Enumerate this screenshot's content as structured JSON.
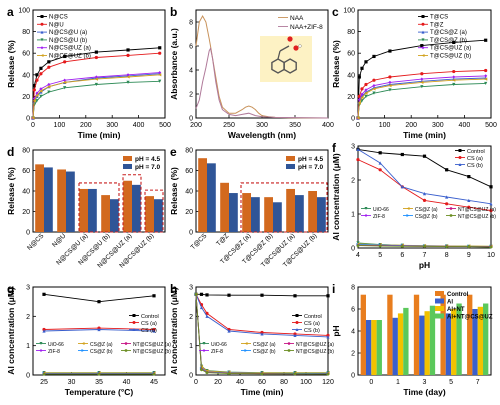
{
  "chart_data": [
    {
      "id": "a",
      "type": "line",
      "panel_label": "a",
      "xlabel": "Time (min)",
      "ylabel": "Release (%)",
      "xlim": [
        0,
        500
      ],
      "ylim": [
        0,
        100
      ],
      "xticks": [
        0,
        100,
        200,
        300,
        400,
        500
      ],
      "yticks": [
        0,
        20,
        40,
        60,
        80,
        100
      ],
      "legend": "top-left",
      "grid": false,
      "x": [
        0,
        5,
        15,
        30,
        60,
        120,
        240,
        360,
        480
      ],
      "series": [
        {
          "name": "N@CS",
          "color": "#000000",
          "marker": "square",
          "values": [
            0,
            30,
            40,
            46,
            52,
            57,
            61,
            63,
            65
          ]
        },
        {
          "name": "N@U",
          "color": "#e41a1c",
          "marker": "circle",
          "values": [
            0,
            26,
            35,
            41,
            47,
            52,
            56,
            58,
            60
          ]
        },
        {
          "name": "N@CS@U (a)",
          "color": "#3a5fcd",
          "marker": "triangle",
          "values": [
            0,
            15,
            20,
            24,
            29,
            33,
            37,
            39,
            41
          ]
        },
        {
          "name": "N@CS@U (b)",
          "color": "#2e8b57",
          "marker": "triangle-down",
          "values": [
            0,
            12,
            16,
            20,
            24,
            28,
            31,
            33,
            34
          ]
        },
        {
          "name": "N@CS@UZ (a)",
          "color": "#a020f0",
          "marker": "diamond",
          "values": [
            0,
            18,
            23,
            27,
            31,
            35,
            38,
            40,
            42
          ]
        },
        {
          "name": "N@CS@UZ (b)",
          "color": "#d2a21e",
          "marker": "triangle-left",
          "values": [
            0,
            16,
            21,
            25,
            29,
            33,
            36,
            38,
            40
          ]
        }
      ]
    },
    {
      "id": "b",
      "type": "line",
      "panel_label": "b",
      "xlabel": "Wavelength (nm)",
      "ylabel": "Absorbance (a.u.)",
      "xlim": [
        200,
        400
      ],
      "ylim": [
        0,
        9
      ],
      "xticks": [
        200,
        250,
        300,
        350,
        400
      ],
      "yticks": [
        0,
        2,
        4,
        6,
        8
      ],
      "legend": "top-right",
      "grid": false,
      "inset": "molecular structure of NAA",
      "series": [
        {
          "name": "NAA",
          "color": "#c8925a",
          "x": [
            200,
            205,
            210,
            215,
            220,
            222,
            225,
            230,
            235,
            240,
            250,
            260,
            270,
            275,
            280,
            285,
            290,
            295,
            300,
            310,
            320,
            340,
            360,
            400
          ],
          "values": [
            6.0,
            8.0,
            8.5,
            8.0,
            6.6,
            6.0,
            5.0,
            3.4,
            1.8,
            0.9,
            0.4,
            0.4,
            0.7,
            0.9,
            1.0,
            0.9,
            0.7,
            0.4,
            0.2,
            0.1,
            0.05,
            0.02,
            0.01,
            0.0
          ]
        },
        {
          "name": "NAA+ZIF-8",
          "color": "#b07a9a",
          "x": [
            200,
            205,
            210,
            215,
            220,
            222,
            225,
            230,
            235,
            240,
            250,
            260,
            270,
            280,
            290,
            300,
            320,
            400
          ],
          "values": [
            0.8,
            1.5,
            3.0,
            4.2,
            5.6,
            5.8,
            5.0,
            3.0,
            1.5,
            0.7,
            0.3,
            0.2,
            0.3,
            0.4,
            0.2,
            0.1,
            0.05,
            0.0
          ]
        }
      ]
    },
    {
      "id": "c",
      "type": "line",
      "panel_label": "c",
      "xlabel": "Time (min)",
      "ylabel": "Release (%)",
      "xlim": [
        0,
        500
      ],
      "ylim": [
        0,
        100
      ],
      "xticks": [
        0,
        100,
        200,
        300,
        400,
        500
      ],
      "yticks": [
        0,
        20,
        40,
        60,
        80,
        100
      ],
      "legend": "top-right",
      "grid": false,
      "x": [
        0,
        5,
        15,
        30,
        60,
        120,
        240,
        360,
        480
      ],
      "series": [
        {
          "name": "T@CS",
          "color": "#000000",
          "marker": "square",
          "values": [
            0,
            38,
            46,
            52,
            57,
            62,
            67,
            70,
            72
          ]
        },
        {
          "name": "T@Z",
          "color": "#e41a1c",
          "marker": "circle",
          "values": [
            0,
            20,
            27,
            31,
            35,
            38,
            41,
            43,
            44
          ]
        },
        {
          "name": "T@CS@Z (a)",
          "color": "#3a5fcd",
          "marker": "triangle",
          "values": [
            0,
            15,
            20,
            24,
            28,
            31,
            34,
            36,
            37
          ]
        },
        {
          "name": "T@CS@Z (b)",
          "color": "#2e8b57",
          "marker": "triangle-down",
          "values": [
            0,
            12,
            16,
            20,
            23,
            26,
            29,
            31,
            32
          ]
        },
        {
          "name": "T@CS@UZ (a)",
          "color": "#a020f0",
          "marker": "diamond",
          "values": [
            0,
            17,
            22,
            26,
            30,
            33,
            36,
            38,
            39
          ]
        },
        {
          "name": "T@CS@UZ (b)",
          "color": "#d2a21e",
          "marker": "triangle-left",
          "values": [
            0,
            14,
            19,
            23,
            27,
            30,
            33,
            35,
            36
          ]
        }
      ]
    },
    {
      "id": "d",
      "type": "bar",
      "panel_label": "d",
      "xlabel": "",
      "ylabel": "Release (%)",
      "ylim": [
        0,
        80
      ],
      "yticks": [
        0,
        20,
        40,
        60,
        80
      ],
      "legend": "top-right",
      "grid": false,
      "highlight_groups": [
        2,
        3,
        4,
        5
      ],
      "categories": [
        "N@CS",
        "N@U",
        "N@CS@U (a)",
        "N@CS@U (b)",
        "N@CS@UZ (a)",
        "N@CS@UZ (b)"
      ],
      "series": [
        {
          "name": "pH = 4.5",
          "color": "#d2691e",
          "values": [
            66,
            61,
            42,
            36,
            50,
            35
          ]
        },
        {
          "name": "pH = 7.0",
          "color": "#2f5597",
          "values": [
            63,
            59,
            42,
            32,
            46,
            32
          ]
        }
      ]
    },
    {
      "id": "e",
      "type": "bar",
      "panel_label": "e",
      "xlabel": "",
      "ylabel": "Release (%)",
      "ylim": [
        0,
        80
      ],
      "yticks": [
        0,
        20,
        40,
        60,
        80
      ],
      "legend": "top-right",
      "grid": false,
      "highlight_groups": [
        2,
        3,
        4,
        5
      ],
      "categories": [
        "T@CS",
        "T@Z",
        "T@CS@Z (a)",
        "T@CS@Z (b)",
        "T@CS@UZ (a)",
        "T@CS@UZ (b)"
      ],
      "series": [
        {
          "name": "pH = 4.5",
          "color": "#d2691e",
          "values": [
            72,
            48,
            38,
            34,
            42,
            40
          ]
        },
        {
          "name": "pH = 7.0",
          "color": "#2f5597",
          "values": [
            67,
            38,
            34,
            29,
            36,
            34
          ]
        }
      ]
    },
    {
      "id": "f",
      "type": "line",
      "panel_label": "f",
      "xlabel": "pH",
      "ylabel": "Al concentration (μM)",
      "xlim": [
        4,
        10
      ],
      "ylim": [
        0,
        3
      ],
      "xticks": [
        4,
        5,
        6,
        7,
        8,
        9,
        10
      ],
      "yticks": [
        0,
        1,
        2,
        3
      ],
      "legend": "top-right",
      "grid": false,
      "x": [
        4,
        5,
        6,
        7,
        8,
        9,
        10
      ],
      "series": [
        {
          "name": "Control",
          "color": "#000000",
          "marker": "square",
          "values": [
            2.9,
            2.8,
            2.75,
            2.7,
            2.3,
            2.1,
            1.8
          ]
        },
        {
          "name": "CS (a)",
          "color": "#e41a1c",
          "marker": "circle",
          "values": [
            2.6,
            2.3,
            1.8,
            1.4,
            1.3,
            1.2,
            1.1
          ]
        },
        {
          "name": "CS (b)",
          "color": "#3a5fcd",
          "marker": "triangle",
          "values": [
            2.9,
            2.5,
            1.8,
            1.6,
            1.5,
            1.4,
            1.3
          ]
        },
        {
          "name": "UiO-66",
          "color": "#2e8b57",
          "marker": "triangle-down",
          "values": [
            0.15,
            0.1,
            0.08,
            0.06,
            0.06,
            0.05,
            0.05
          ]
        },
        {
          "name": "ZIF-8",
          "color": "#a020f0",
          "marker": "diamond",
          "values": [
            0.1,
            0.08,
            0.06,
            0.05,
            0.05,
            0.04,
            0.04
          ]
        },
        {
          "name": "CS@Z (a)",
          "color": "#d2a21e",
          "marker": "triangle-left",
          "values": [
            0.12,
            0.1,
            0.08,
            0.07,
            0.06,
            0.06,
            0.05
          ]
        },
        {
          "name": "CS@Z (b)",
          "color": "#1e90ff",
          "marker": "triangle-right",
          "values": [
            0.1,
            0.09,
            0.07,
            0.06,
            0.05,
            0.05,
            0.04
          ]
        },
        {
          "name": "NT@CS@UZ (a)",
          "color": "#c71585",
          "marker": "pentagon",
          "values": [
            0.08,
            0.07,
            0.06,
            0.05,
            0.05,
            0.04,
            0.04
          ]
        },
        {
          "name": "NT@CS@UZ (b)",
          "color": "#6b8e23",
          "marker": "hexagon",
          "values": [
            0.07,
            0.06,
            0.05,
            0.05,
            0.04,
            0.04,
            0.03
          ]
        }
      ]
    },
    {
      "id": "g",
      "type": "line",
      "panel_label": "g",
      "xlabel": "Temperature (°C)",
      "ylabel": "Al concentration (μM)",
      "xlim": [
        23,
        47
      ],
      "ylim": [
        0,
        3
      ],
      "xticks": [
        25,
        30,
        35,
        40,
        45
      ],
      "yticks": [
        0,
        1,
        2,
        3
      ],
      "legend": "middle-right",
      "grid": false,
      "x": [
        25,
        35,
        45
      ],
      "series": [
        {
          "name": "Control",
          "color": "#000000",
          "marker": "square",
          "values": [
            2.75,
            2.5,
            2.7
          ]
        },
        {
          "name": "CS (a)",
          "color": "#e41a1c",
          "marker": "circle",
          "values": [
            1.55,
            1.6,
            1.55
          ]
        },
        {
          "name": "CS (b)",
          "color": "#3a5fcd",
          "marker": "triangle",
          "values": [
            1.5,
            1.55,
            1.5
          ]
        },
        {
          "name": "UiO-66",
          "color": "#2e8b57",
          "marker": "triangle-down",
          "values": [
            0.08,
            0.08,
            0.08
          ]
        },
        {
          "name": "ZIF-8",
          "color": "#a020f0",
          "marker": "diamond",
          "values": [
            0.06,
            0.06,
            0.06
          ]
        },
        {
          "name": "CS@Z (a)",
          "color": "#d2a21e",
          "marker": "triangle-left",
          "values": [
            0.07,
            0.07,
            0.07
          ]
        },
        {
          "name": "CS@Z (b)",
          "color": "#1e90ff",
          "marker": "triangle-right",
          "values": [
            0.05,
            0.05,
            0.05
          ]
        },
        {
          "name": "NT@CS@UZ (a)",
          "color": "#c71585",
          "marker": "pentagon",
          "values": [
            0.04,
            0.04,
            0.04
          ]
        },
        {
          "name": "NT@CS@UZ (b)",
          "color": "#6b8e23",
          "marker": "hexagon",
          "values": [
            0.03,
            0.03,
            0.03
          ]
        }
      ]
    },
    {
      "id": "h",
      "type": "line",
      "panel_label": "h",
      "xlabel": "Time (min)",
      "ylabel": "Al concentration (μM)",
      "xlim": [
        0,
        120
      ],
      "ylim": [
        0,
        3
      ],
      "xticks": [
        0,
        20,
        40,
        60,
        80,
        100,
        120
      ],
      "yticks": [
        0,
        1,
        2,
        3
      ],
      "legend": "middle-right",
      "grid": false,
      "x": [
        0,
        5,
        10,
        30,
        60,
        90,
        120
      ],
      "series": [
        {
          "name": "Control",
          "color": "#000000",
          "marker": "square",
          "values": [
            2.75,
            2.75,
            2.73,
            2.72,
            2.72,
            2.7,
            2.7
          ]
        },
        {
          "name": "CS (a)",
          "color": "#e41a1c",
          "marker": "circle",
          "values": [
            2.75,
            2.4,
            2.1,
            1.55,
            1.45,
            1.4,
            1.35
          ]
        },
        {
          "name": "CS (b)",
          "color": "#3a5fcd",
          "marker": "triangle",
          "values": [
            2.75,
            2.3,
            2.0,
            1.5,
            1.4,
            1.35,
            1.3
          ]
        },
        {
          "name": "UiO-66",
          "color": "#2e8b57",
          "marker": "triangle-down",
          "values": [
            2.75,
            0.3,
            0.15,
            0.1,
            0.08,
            0.08,
            0.08
          ]
        },
        {
          "name": "ZIF-8",
          "color": "#a020f0",
          "marker": "diamond",
          "values": [
            2.75,
            0.25,
            0.12,
            0.08,
            0.06,
            0.06,
            0.06
          ]
        },
        {
          "name": "CS@Z (a)",
          "color": "#d2a21e",
          "marker": "triangle-left",
          "values": [
            2.75,
            0.28,
            0.14,
            0.09,
            0.07,
            0.07,
            0.07
          ]
        },
        {
          "name": "CS@Z (b)",
          "color": "#1e90ff",
          "marker": "triangle-right",
          "values": [
            2.75,
            0.22,
            0.1,
            0.07,
            0.05,
            0.05,
            0.05
          ]
        },
        {
          "name": "NT@CS@UZ (a)",
          "color": "#c71585",
          "marker": "pentagon",
          "values": [
            2.75,
            0.2,
            0.09,
            0.06,
            0.05,
            0.04,
            0.04
          ]
        },
        {
          "name": "NT@CS@UZ (b)",
          "color": "#6b8e23",
          "marker": "hexagon",
          "values": [
            2.75,
            0.18,
            0.08,
            0.05,
            0.04,
            0.04,
            0.03
          ]
        }
      ]
    },
    {
      "id": "i",
      "type": "bar",
      "panel_label": "i",
      "xlabel": "Time (day)",
      "ylabel": "pH",
      "ylim": [
        0,
        8
      ],
      "yticks": [
        0,
        2,
        4,
        6,
        8
      ],
      "legend": "top-right",
      "grid": false,
      "categories": [
        "0",
        "1",
        "3",
        "5",
        "7"
      ],
      "series": [
        {
          "name": "Control",
          "color": "#e87d1e",
          "values": [
            7.3,
            7.3,
            7.3,
            7.3,
            7.3
          ]
        },
        {
          "name": "Al",
          "color": "#3a5fcd",
          "values": [
            5.0,
            5.2,
            5.4,
            5.6,
            6.0
          ]
        },
        {
          "name": "Al+NT",
          "color": "#f2c200",
          "values": [
            5.0,
            5.6,
            5.8,
            6.0,
            6.2
          ]
        },
        {
          "name": "Al+NT@CS@UZ",
          "color": "#5bc85b",
          "values": [
            5.0,
            6.1,
            6.3,
            6.5,
            6.5
          ]
        }
      ]
    }
  ]
}
